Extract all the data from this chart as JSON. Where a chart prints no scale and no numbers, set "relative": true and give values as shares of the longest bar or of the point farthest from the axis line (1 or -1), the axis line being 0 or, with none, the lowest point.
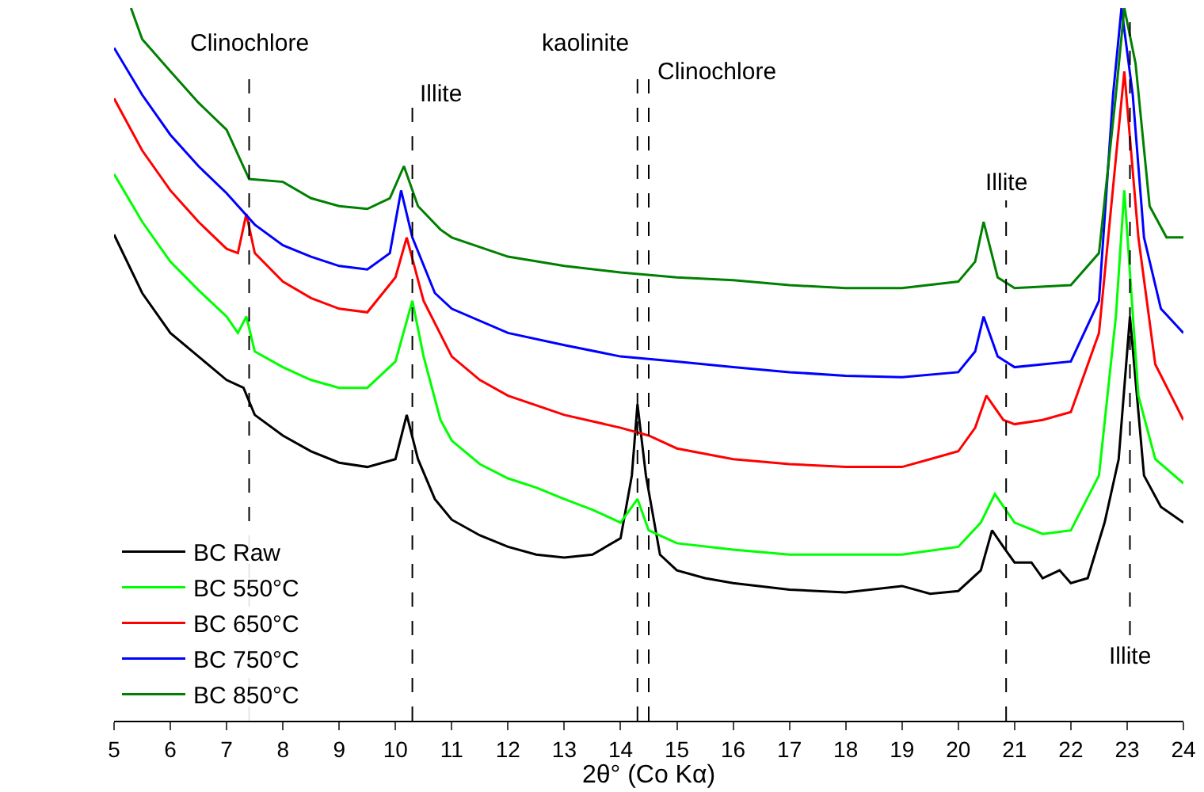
{
  "chart_data": {
    "type": "line",
    "relative": true,
    "xlabel": "2θ° (Co Kα)",
    "xlim": [
      5,
      24
    ],
    "xticks": [
      5,
      6,
      7,
      8,
      9,
      10,
      11,
      12,
      13,
      14,
      15,
      16,
      17,
      18,
      19,
      20,
      21,
      22,
      23,
      24
    ],
    "legend": "bottom left",
    "marker": "none",
    "line_style": "solid",
    "series": [
      {
        "name": "BC Raw",
        "color": "#000000",
        "x": [
          5,
          5.5,
          6,
          6.5,
          7,
          7.3,
          7.5,
          8,
          8.5,
          9,
          9.5,
          10,
          10.2,
          10.4,
          10.7,
          11,
          11.5,
          12,
          12.5,
          13,
          13.5,
          14,
          14.2,
          14.3,
          14.45,
          14.7,
          15,
          15.5,
          16,
          17,
          18,
          19,
          19.5,
          20,
          20.4,
          20.6,
          20.8,
          21,
          21.3,
          21.5,
          21.8,
          22,
          22.3,
          22.6,
          22.85,
          23.05,
          23.3,
          23.6,
          24
        ],
        "values": [
          0.682,
          0.6,
          0.544,
          0.511,
          0.478,
          0.467,
          0.429,
          0.4,
          0.378,
          0.362,
          0.356,
          0.367,
          0.429,
          0.367,
          0.311,
          0.282,
          0.26,
          0.244,
          0.233,
          0.229,
          0.233,
          0.256,
          0.344,
          0.444,
          0.344,
          0.233,
          0.211,
          0.2,
          0.193,
          0.184,
          0.18,
          0.189,
          0.178,
          0.182,
          0.211,
          0.267,
          0.244,
          0.222,
          0.222,
          0.2,
          0.211,
          0.193,
          0.2,
          0.278,
          0.367,
          0.567,
          0.344,
          0.3,
          0.278
        ]
      },
      {
        "name": "BC 550°C",
        "color": "#00ff00",
        "x": [
          5,
          5.5,
          6,
          6.5,
          7,
          7.2,
          7.35,
          7.5,
          8,
          8.5,
          9,
          9.5,
          10,
          10.3,
          10.5,
          10.8,
          11,
          11.5,
          12,
          12.5,
          13,
          13.5,
          14,
          14.3,
          14.5,
          15,
          16,
          17,
          18,
          19,
          20,
          20.4,
          20.65,
          21,
          21.5,
          22,
          22.5,
          22.8,
          22.95,
          23.2,
          23.5,
          24
        ],
        "values": [
          0.767,
          0.7,
          0.644,
          0.604,
          0.567,
          0.544,
          0.567,
          0.518,
          0.496,
          0.478,
          0.467,
          0.467,
          0.504,
          0.589,
          0.511,
          0.422,
          0.393,
          0.36,
          0.34,
          0.327,
          0.311,
          0.296,
          0.278,
          0.311,
          0.267,
          0.249,
          0.24,
          0.233,
          0.233,
          0.233,
          0.244,
          0.278,
          0.318,
          0.278,
          0.262,
          0.267,
          0.344,
          0.567,
          0.744,
          0.456,
          0.367,
          0.333
        ]
      },
      {
        "name": "BC 650°C",
        "color": "#ff0000",
        "x": [
          5,
          5.5,
          6,
          6.5,
          7,
          7.2,
          7.35,
          7.5,
          8,
          8.5,
          9,
          9.5,
          10,
          10.2,
          10.5,
          11,
          11.5,
          12,
          13,
          14,
          14.5,
          15,
          16,
          17,
          18,
          19,
          19.5,
          20,
          20.3,
          20.5,
          20.8,
          21,
          21.5,
          22,
          22.5,
          22.8,
          22.95,
          23.2,
          23.5,
          24
        ],
        "values": [
          0.873,
          0.8,
          0.744,
          0.7,
          0.662,
          0.656,
          0.711,
          0.656,
          0.616,
          0.593,
          0.578,
          0.573,
          0.622,
          0.678,
          0.589,
          0.511,
          0.478,
          0.456,
          0.429,
          0.411,
          0.4,
          0.382,
          0.367,
          0.36,
          0.356,
          0.356,
          0.367,
          0.378,
          0.411,
          0.456,
          0.422,
          0.416,
          0.422,
          0.433,
          0.544,
          0.789,
          0.911,
          0.678,
          0.5,
          0.422
        ]
      },
      {
        "name": "BC 750°C",
        "color": "#0000ff",
        "x": [
          5,
          5.5,
          6,
          6.5,
          7,
          7.5,
          8,
          8.5,
          9,
          9.5,
          9.9,
          10.1,
          10.3,
          10.7,
          11,
          12,
          13,
          14,
          15,
          16,
          17,
          18,
          19,
          20,
          20.3,
          20.45,
          20.7,
          21,
          22,
          22.5,
          22.75,
          22.9,
          23.1,
          23.3,
          23.6,
          24
        ],
        "values": [
          0.944,
          0.878,
          0.822,
          0.778,
          0.74,
          0.696,
          0.667,
          0.651,
          0.638,
          0.633,
          0.656,
          0.744,
          0.678,
          0.6,
          0.578,
          0.544,
          0.527,
          0.511,
          0.504,
          0.496,
          0.489,
          0.484,
          0.482,
          0.489,
          0.518,
          0.567,
          0.511,
          0.496,
          0.504,
          0.589,
          0.878,
          1.0,
          0.878,
          0.678,
          0.578,
          0.544
        ]
      },
      {
        "name": "BC 850°C",
        "color": "#008000",
        "x": [
          5.3,
          5.5,
          6,
          6.5,
          7,
          7.4,
          8,
          8.5,
          9,
          9.5,
          9.9,
          10.15,
          10.4,
          10.8,
          11,
          12,
          13,
          14,
          15,
          16,
          17,
          18,
          19,
          20,
          20.3,
          20.45,
          20.7,
          21,
          22,
          22.5,
          22.8,
          22.95,
          23.15,
          23.4,
          23.7,
          24
        ],
        "values": [
          1.0,
          0.956,
          0.911,
          0.867,
          0.829,
          0.76,
          0.756,
          0.733,
          0.722,
          0.718,
          0.733,
          0.778,
          0.722,
          0.689,
          0.678,
          0.651,
          0.638,
          0.629,
          0.622,
          0.618,
          0.611,
          0.607,
          0.607,
          0.616,
          0.644,
          0.7,
          0.622,
          0.607,
          0.611,
          0.656,
          0.878,
          1.0,
          0.922,
          0.722,
          0.678,
          0.678
        ]
      }
    ],
    "ref_lines": [
      {
        "axis": "x",
        "value": 7.4,
        "label": "Clinochlore",
        "line_style": "dashed",
        "color": "#000000"
      },
      {
        "axis": "x",
        "value": 10.3,
        "label": "Illite",
        "line_style": "dashed",
        "color": "#000000"
      },
      {
        "axis": "x",
        "value": 14.3,
        "label": "kaolinite",
        "line_style": "dashed",
        "color": "#000000"
      },
      {
        "axis": "x",
        "value": 14.5,
        "label": "Clinochlore",
        "line_style": "dashed",
        "color": "#000000"
      },
      {
        "axis": "x",
        "value": 20.85,
        "label": "Illite",
        "line_style": "dashed",
        "color": "#000000"
      },
      {
        "axis": "x",
        "value": 23.05,
        "label": "Illite",
        "line_style": "dashed",
        "color": "#000000"
      }
    ]
  }
}
